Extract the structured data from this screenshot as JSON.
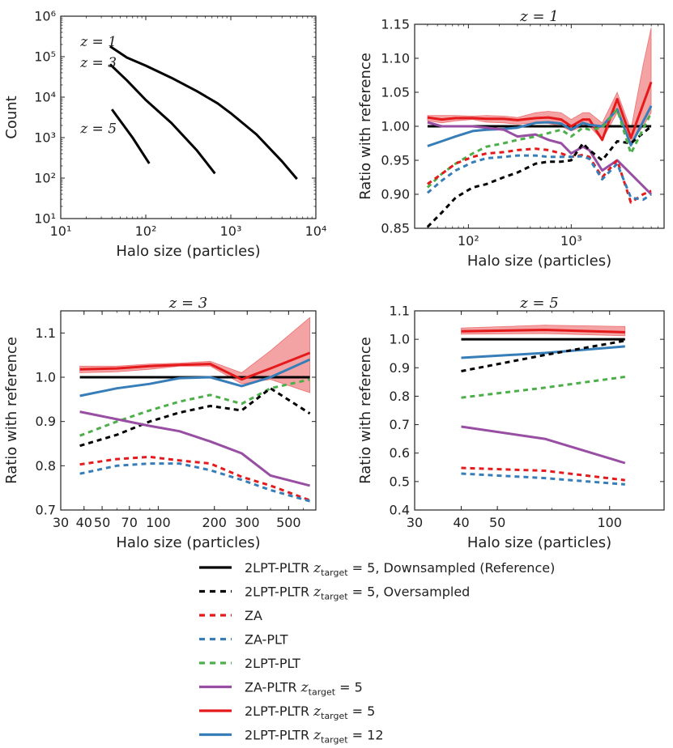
{
  "colors": {
    "reference": "#000000",
    "oversampled": "#000000",
    "za": "#e41a1c",
    "za_plt": "#377eb8",
    "lpt_plt": "#4daf4a",
    "za_pltr": "#984ea3",
    "lpt_pltr5": "#e41a1c",
    "lpt_pltr12": "#377eb8",
    "band": "#e41a1c"
  },
  "legend": [
    {
      "key": "reference",
      "text": "2LPT-PLTR ",
      "math": "z",
      "sub": "target",
      "eq": " = 5",
      "tail": ", Downsampled (Reference)",
      "dash": false,
      "color": "#000000"
    },
    {
      "key": "oversampled",
      "text": "2LPT-PLTR ",
      "math": "z",
      "sub": "target",
      "eq": " = 5",
      "tail": ", Oversampled",
      "dash": true,
      "color": "#000000"
    },
    {
      "key": "za",
      "text": "ZA",
      "math": "",
      "sub": "",
      "eq": "",
      "tail": "",
      "dash": true,
      "color": "#e41a1c"
    },
    {
      "key": "za_plt",
      "text": "ZA-PLT",
      "math": "",
      "sub": "",
      "eq": "",
      "tail": "",
      "dash": true,
      "color": "#377eb8"
    },
    {
      "key": "lpt_plt",
      "text": "2LPT-PLT",
      "math": "",
      "sub": "",
      "eq": "",
      "tail": "",
      "dash": true,
      "color": "#4daf4a"
    },
    {
      "key": "za_pltr",
      "text": "ZA-PLTR ",
      "math": "z",
      "sub": "target",
      "eq": " = 5",
      "tail": "",
      "dash": false,
      "color": "#984ea3"
    },
    {
      "key": "lpt_pltr5",
      "text": "2LPT-PLTR ",
      "math": "z",
      "sub": "target",
      "eq": " = 5",
      "tail": "",
      "dash": false,
      "color": "#e41a1c"
    },
    {
      "key": "lpt_pltr12",
      "text": "2LPT-PLTR ",
      "math": "z",
      "sub": "target",
      "eq": " = 12",
      "tail": "",
      "dash": false,
      "color": "#377eb8"
    }
  ],
  "chart_data": [
    {
      "id": "count",
      "type": "line",
      "title": "",
      "xlabel": "Halo size (particles)",
      "ylabel": "Count",
      "xscale": "log",
      "yscale": "log",
      "xlim": [
        10,
        10000
      ],
      "ylim": [
        10,
        1000000
      ],
      "xticks": [
        10,
        100,
        1000,
        10000
      ],
      "xtick_labels": [
        "10¹",
        "10²",
        "10³",
        "10⁴"
      ],
      "yticks": [
        10,
        100,
        1000,
        10000,
        100000,
        1000000
      ],
      "ytick_labels": [
        "10¹",
        "10²",
        "10³",
        "10⁴",
        "10⁵",
        "10⁶"
      ],
      "annotations": [
        {
          "text": "z = 1",
          "x": 17,
          "y": 180000
        },
        {
          "text": "z = 3",
          "x": 17,
          "y": 55000
        },
        {
          "text": "z = 5",
          "x": 17,
          "y": 1300
        }
      ],
      "series": [
        {
          "name": "z = 1",
          "key": "reference",
          "x": [
            38,
            60,
            100,
            200,
            400,
            700,
            1000,
            2000,
            4000,
            6000
          ],
          "y": [
            180000,
            95000,
            60000,
            30000,
            14000,
            7000,
            4000,
            1200,
            260,
            95
          ]
        },
        {
          "name": "z = 3",
          "key": "reference",
          "x": [
            38,
            60,
            100,
            200,
            400,
            650
          ],
          "y": [
            65000,
            26000,
            8500,
            2300,
            480,
            130
          ]
        },
        {
          "name": "z = 5",
          "key": "reference",
          "x": [
            40,
            70,
            110
          ],
          "y": [
            5000,
            1000,
            230
          ]
        }
      ]
    },
    {
      "id": "z1",
      "type": "line",
      "title": "z = 1",
      "xlabel": "Halo size (particles)",
      "ylabel": "Ratio with reference",
      "xscale": "log",
      "yscale": "linear",
      "xlim": [
        30,
        8000
      ],
      "ylim": [
        0.85,
        1.15
      ],
      "xticks": [
        100,
        1000
      ],
      "xtick_labels": [
        "10²",
        "10³"
      ],
      "yticks": [
        0.85,
        0.9,
        0.95,
        1.0,
        1.05,
        1.1,
        1.15
      ],
      "ytick_labels": [
        "0.85",
        "0.90",
        "0.95",
        "1.00",
        "1.05",
        "1.10",
        "1.15"
      ],
      "band": {
        "x": [
          40,
          55,
          75,
          110,
          150,
          220,
          300,
          450,
          600,
          800,
          1000,
          1300,
          1500,
          2000,
          2800,
          3800,
          5000,
          6000
        ],
        "lo": [
          1.008,
          1.005,
          1.008,
          1.01,
          1.006,
          1.005,
          1.003,
          1.005,
          1.004,
          1.0,
          0.993,
          1.0,
          1.0,
          0.98,
          1.02,
          0.975,
          1.0,
          1.02
        ],
        "hi": [
          1.016,
          1.016,
          1.016,
          1.015,
          1.016,
          1.015,
          1.013,
          1.02,
          1.022,
          1.02,
          1.01,
          1.02,
          1.02,
          1.005,
          1.05,
          0.995,
          1.09,
          1.145
        ]
      },
      "series": [
        {
          "key": "reference",
          "x": [
            40,
            6000
          ],
          "y": [
            1.0,
            1.0
          ]
        },
        {
          "key": "lpt_pltr5",
          "x": [
            40,
            55,
            75,
            110,
            150,
            220,
            300,
            450,
            600,
            800,
            1000,
            1300,
            1500,
            2000,
            2800,
            3800,
            6000
          ],
          "y": [
            1.013,
            1.01,
            1.012,
            1.012,
            1.011,
            1.011,
            1.009,
            1.012,
            1.013,
            1.01,
            1.0,
            1.01,
            1.01,
            0.98,
            1.04,
            0.983,
            1.065
          ]
        },
        {
          "key": "lpt_pltr12",
          "x": [
            40,
            55,
            75,
            110,
            150,
            220,
            300,
            450,
            600,
            800,
            1000,
            1300,
            1500,
            2000,
            2800,
            3800,
            6000
          ],
          "y": [
            0.971,
            0.978,
            0.985,
            0.993,
            0.995,
            0.996,
            0.998,
            1.005,
            1.006,
            1.004,
            0.995,
            1.005,
            1.002,
            1.0,
            1.025,
            0.972,
            1.03
          ]
        },
        {
          "key": "za_pltr",
          "x": [
            40,
            55,
            75,
            110,
            150,
            220,
            300,
            450,
            600,
            800,
            1000,
            1300,
            1500,
            2000,
            2800,
            3800,
            6000
          ],
          "y": [
            1.006,
            1.0,
            1.0,
            1.0,
            0.998,
            0.995,
            0.985,
            0.988,
            0.98,
            0.975,
            0.96,
            0.97,
            0.965,
            0.935,
            0.95,
            0.93,
            0.9
          ]
        },
        {
          "key": "oversampled",
          "x": [
            40,
            55,
            75,
            110,
            150,
            220,
            300,
            450,
            600,
            800,
            1000,
            1300,
            1500,
            2000,
            2800,
            3800,
            5000,
            6000
          ],
          "y": [
            0.852,
            0.873,
            0.895,
            0.91,
            0.915,
            0.925,
            0.932,
            0.945,
            0.948,
            0.948,
            0.95,
            0.975,
            0.965,
            0.95,
            0.978,
            0.975,
            0.99,
            1.0
          ]
        },
        {
          "key": "lpt_plt",
          "x": [
            40,
            55,
            75,
            110,
            150,
            220,
            300,
            450,
            600,
            800,
            1000,
            1300,
            1500,
            2000,
            2800,
            3800,
            6000
          ],
          "y": [
            0.91,
            0.93,
            0.945,
            0.96,
            0.97,
            0.975,
            0.98,
            0.985,
            0.99,
            0.995,
            0.985,
            0.998,
            0.995,
            0.998,
            1.025,
            0.96,
            1.02
          ]
        },
        {
          "key": "za",
          "x": [
            40,
            55,
            75,
            110,
            150,
            220,
            300,
            450,
            600,
            800,
            1000,
            1300,
            1500,
            2000,
            2800,
            3800,
            5000,
            6000
          ],
          "y": [
            0.915,
            0.93,
            0.945,
            0.955,
            0.96,
            0.962,
            0.965,
            0.967,
            0.965,
            0.96,
            0.955,
            0.958,
            0.955,
            0.925,
            0.95,
            0.888,
            0.9,
            0.905
          ]
        },
        {
          "key": "za_plt",
          "x": [
            40,
            55,
            75,
            110,
            150,
            220,
            300,
            450,
            600,
            800,
            1000,
            1300,
            1500,
            2000,
            2800,
            3800,
            5000,
            6000
          ],
          "y": [
            0.902,
            0.92,
            0.935,
            0.947,
            0.953,
            0.955,
            0.957,
            0.957,
            0.955,
            0.955,
            0.955,
            0.956,
            0.952,
            0.922,
            0.945,
            0.895,
            0.892,
            0.9
          ]
        }
      ]
    },
    {
      "id": "z3",
      "type": "line",
      "title": "z = 3",
      "xlabel": "Halo size (particles)",
      "ylabel": "Ratio with reference",
      "xscale": "log",
      "yscale": "linear",
      "xlim": [
        30,
        700
      ],
      "ylim": [
        0.7,
        1.15
      ],
      "xticks": [
        30,
        40,
        50,
        70,
        100,
        200,
        300,
        500
      ],
      "xtick_labels": [
        "30",
        "40",
        "50",
        "70",
        "100",
        "200",
        "300",
        "500"
      ],
      "yticks": [
        0.7,
        0.8,
        0.9,
        1.0,
        1.1
      ],
      "ytick_labels": [
        "0.7",
        "0.8",
        "0.9",
        "1.0",
        "1.1"
      ],
      "band": {
        "x": [
          38,
          60,
          90,
          130,
          190,
          280,
          400,
          650
        ],
        "lo": [
          1.01,
          1.012,
          1.018,
          1.025,
          1.025,
          0.985,
          0.995,
          0.965
        ],
        "hi": [
          1.025,
          1.025,
          1.03,
          1.032,
          1.036,
          1.01,
          1.06,
          1.135
        ]
      },
      "series": [
        {
          "key": "reference",
          "x": [
            38,
            650
          ],
          "y": [
            1.0,
            1.0
          ]
        },
        {
          "key": "lpt_pltr5",
          "x": [
            38,
            60,
            90,
            130,
            190,
            280,
            400,
            650
          ],
          "y": [
            1.018,
            1.02,
            1.025,
            1.028,
            1.03,
            0.995,
            1.02,
            1.055
          ]
        },
        {
          "key": "lpt_pltr12",
          "x": [
            38,
            60,
            90,
            130,
            190,
            280,
            400,
            650
          ],
          "y": [
            0.958,
            0.975,
            0.985,
            0.998,
            1.0,
            0.98,
            1.0,
            1.04
          ]
        },
        {
          "key": "lpt_plt",
          "x": [
            38,
            60,
            90,
            130,
            190,
            280,
            400,
            650
          ],
          "y": [
            0.868,
            0.9,
            0.925,
            0.945,
            0.96,
            0.94,
            0.975,
            0.995
          ]
        },
        {
          "key": "oversampled",
          "x": [
            38,
            60,
            90,
            130,
            190,
            280,
            400,
            650
          ],
          "y": [
            0.845,
            0.87,
            0.9,
            0.92,
            0.935,
            0.925,
            0.975,
            0.918
          ]
        },
        {
          "key": "za_pltr",
          "x": [
            38,
            60,
            90,
            130,
            190,
            280,
            400,
            650
          ],
          "y": [
            0.922,
            0.905,
            0.89,
            0.878,
            0.855,
            0.828,
            0.778,
            0.755
          ]
        },
        {
          "key": "za",
          "x": [
            38,
            60,
            90,
            130,
            190,
            280,
            400,
            650
          ],
          "y": [
            0.803,
            0.815,
            0.82,
            0.812,
            0.805,
            0.775,
            0.755,
            0.722
          ]
        },
        {
          "key": "za_plt",
          "x": [
            38,
            60,
            90,
            130,
            190,
            280,
            400,
            650
          ],
          "y": [
            0.782,
            0.8,
            0.805,
            0.805,
            0.79,
            0.768,
            0.745,
            0.72
          ]
        }
      ]
    },
    {
      "id": "z5",
      "type": "line",
      "title": "z = 5",
      "xlabel": "Halo size (particles)",
      "ylabel": "Ratio with reference",
      "xscale": "log",
      "yscale": "linear",
      "xlim": [
        30,
        140
      ],
      "ylim": [
        0.4,
        1.1
      ],
      "xticks": [
        30,
        40,
        50,
        100
      ],
      "xtick_labels": [
        "30",
        "40",
        "50",
        "100"
      ],
      "yticks": [
        0.4,
        0.5,
        0.6,
        0.7,
        0.8,
        0.9,
        1.0,
        1.1
      ],
      "ytick_labels": [
        "0.4",
        "0.5",
        "0.6",
        "0.7",
        "0.8",
        "0.9",
        "1.0",
        "1.1"
      ],
      "band": {
        "x": [
          40,
          67,
          110
        ],
        "lo": [
          1.018,
          1.02,
          1.012
        ],
        "hi": [
          1.04,
          1.05,
          1.045
        ]
      },
      "series": [
        {
          "key": "reference",
          "x": [
            40,
            110
          ],
          "y": [
            1.0,
            1.0
          ]
        },
        {
          "key": "lpt_pltr5",
          "x": [
            40,
            67,
            110
          ],
          "y": [
            1.028,
            1.033,
            1.025
          ]
        },
        {
          "key": "lpt_pltr12",
          "x": [
            40,
            67,
            110
          ],
          "y": [
            0.935,
            0.952,
            0.975
          ]
        },
        {
          "key": "oversampled",
          "x": [
            40,
            67,
            110
          ],
          "y": [
            0.888,
            0.945,
            0.995
          ]
        },
        {
          "key": "lpt_plt",
          "x": [
            40,
            67,
            110
          ],
          "y": [
            0.795,
            0.83,
            0.868
          ]
        },
        {
          "key": "za_pltr",
          "x": [
            40,
            67,
            110
          ],
          "y": [
            0.693,
            0.65,
            0.565
          ]
        },
        {
          "key": "za",
          "x": [
            40,
            67,
            110
          ],
          "y": [
            0.548,
            0.538,
            0.505
          ]
        },
        {
          "key": "za_plt",
          "x": [
            40,
            67,
            110
          ],
          "y": [
            0.528,
            0.512,
            0.49
          ]
        }
      ]
    }
  ]
}
